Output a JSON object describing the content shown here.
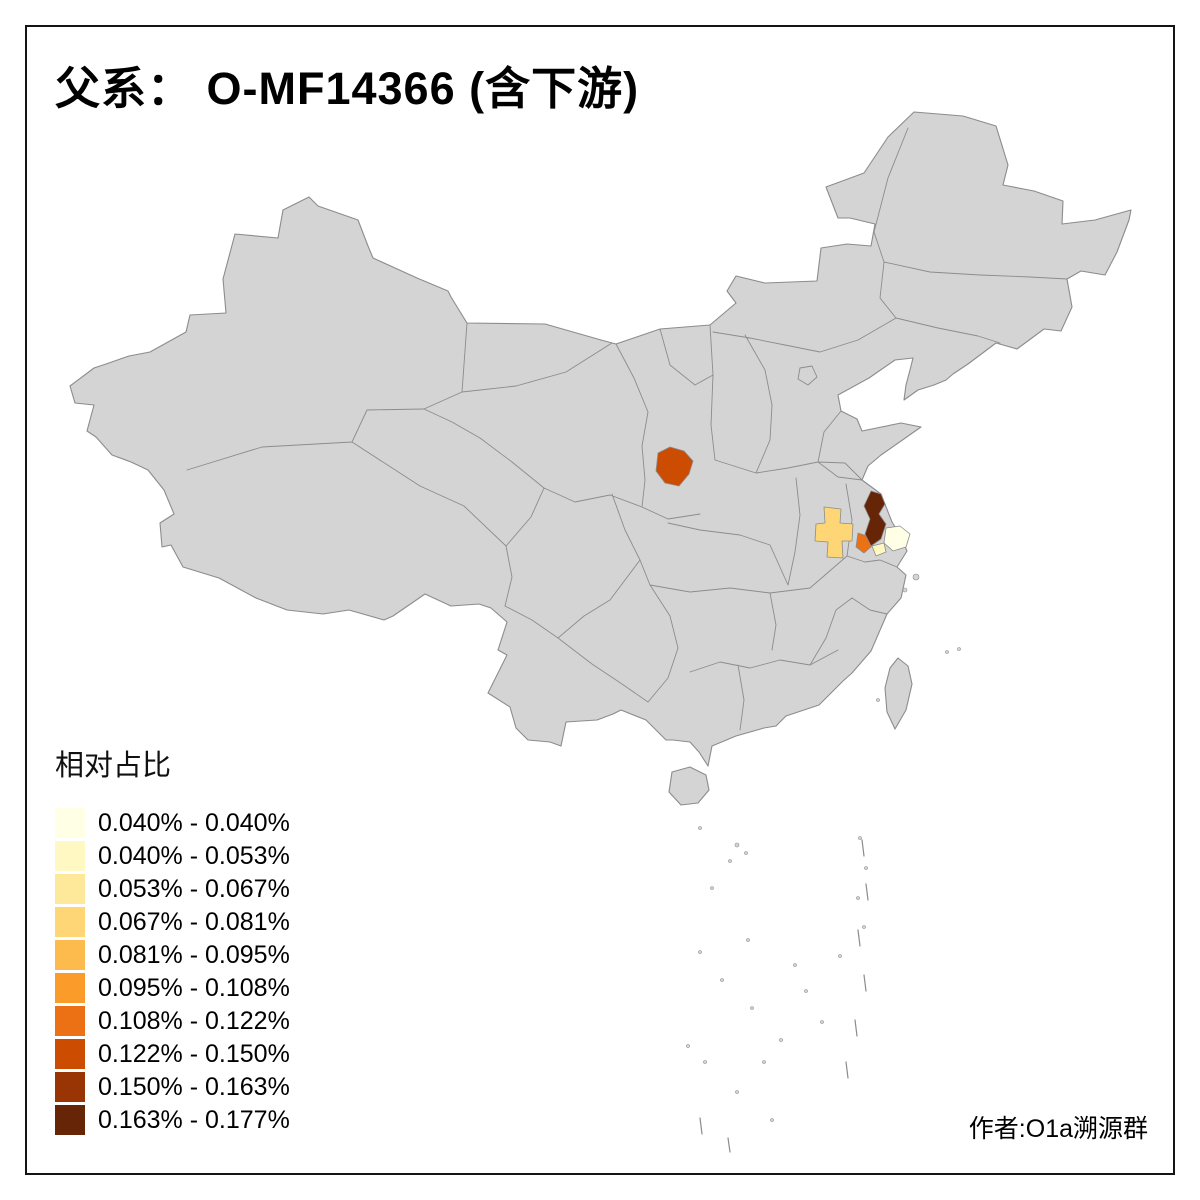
{
  "title": "父系： O-MF14366 (含下游)",
  "credit": "作者:O1a溯源群",
  "legend": {
    "title": "相对占比",
    "entries": [
      {
        "color": "#FFFFE5",
        "label": "0.040% - 0.040%"
      },
      {
        "color": "#FFF8C2",
        "label": "0.040% - 0.053%"
      },
      {
        "color": "#FEE99B",
        "label": "0.053% - 0.067%"
      },
      {
        "color": "#FED676",
        "label": "0.067% - 0.081%"
      },
      {
        "color": "#FEBB4D",
        "label": "0.081% - 0.095%"
      },
      {
        "color": "#FB9B29",
        "label": "0.095% - 0.108%"
      },
      {
        "color": "#EC7014",
        "label": "0.108% - 0.122%"
      },
      {
        "color": "#CC4C02",
        "label": "0.122% - 0.150%"
      },
      {
        "color": "#993404",
        "label": "0.150% - 0.163%"
      },
      {
        "color": "#662506",
        "label": "0.163% - 0.177%"
      }
    ]
  },
  "map": {
    "base_fill": "#d4d4d4",
    "boundary_stroke": "#8c8c8c",
    "regions": [
      {
        "name": "highlight-region-central-shaanxi",
        "color": "#CC4C02"
      },
      {
        "name": "highlight-region-northwest-anhui",
        "color": "#FED676"
      },
      {
        "name": "highlight-region-central-jiangsu",
        "color": "#662506"
      },
      {
        "name": "highlight-region-south-jiangsu",
        "color": "#EC7014"
      },
      {
        "name": "highlight-region-east-coast-pale",
        "color": "#FFFFE5"
      },
      {
        "name": "highlight-region-coast-cream",
        "color": "#FFF8C2"
      }
    ]
  }
}
